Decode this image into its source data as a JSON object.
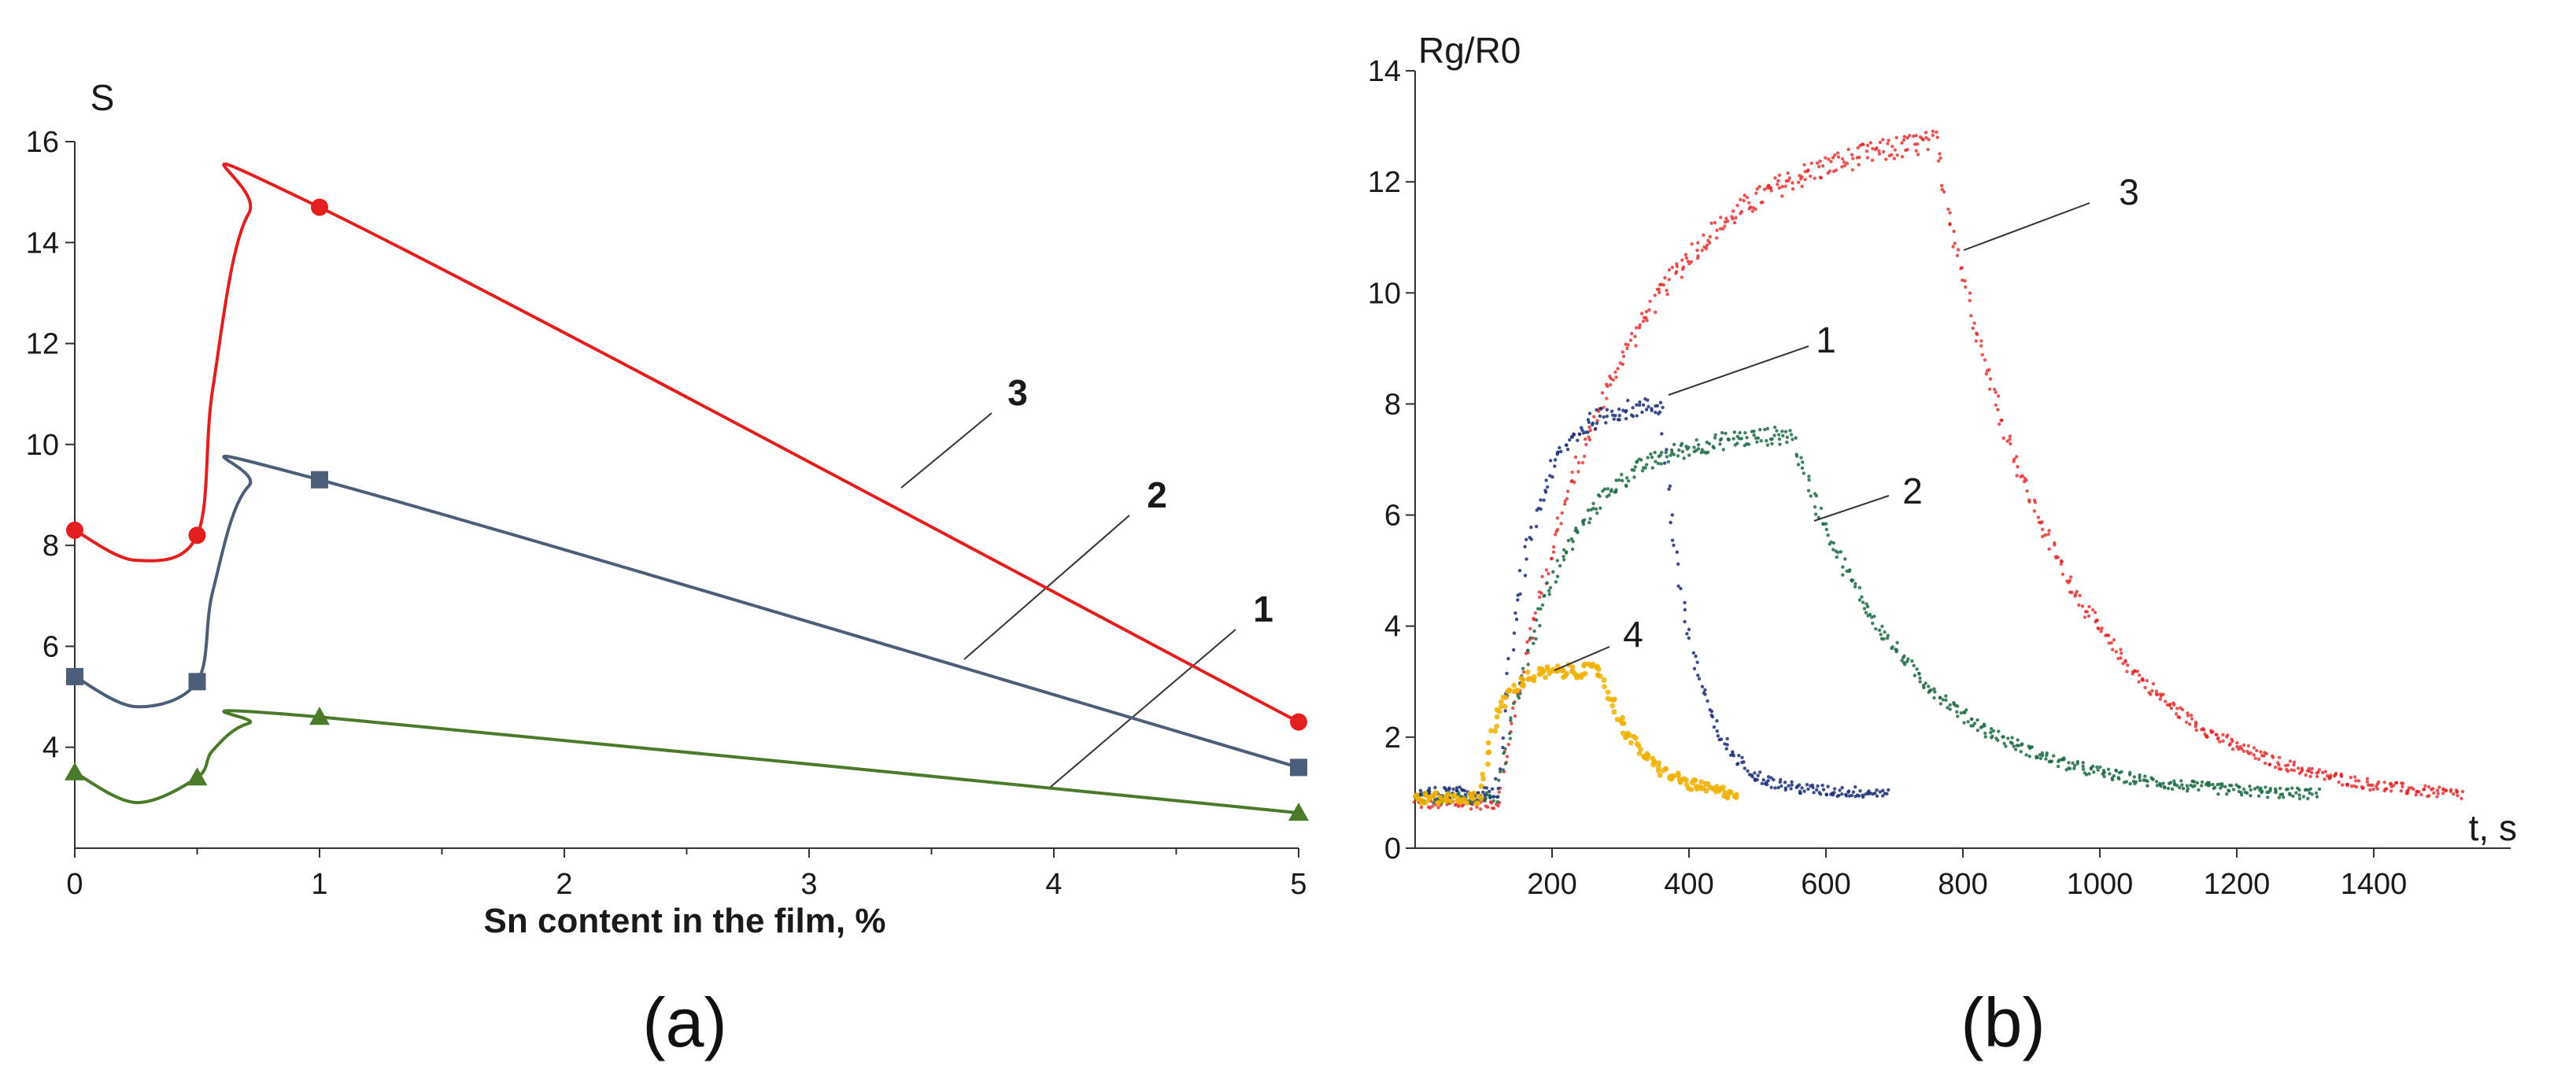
{
  "chart_data": [
    {
      "type": "line",
      "panel_label": "(a)",
      "ylabel": "S",
      "xlabel": "Sn content in the film, %",
      "xlim": [
        0,
        5
      ],
      "ylim": [
        2,
        16
      ],
      "xticks": [
        "0",
        "1",
        "2",
        "3",
        "4",
        "5"
      ],
      "yticks": [
        "4",
        "6",
        "8",
        "10",
        "12",
        "14",
        "16"
      ],
      "series": [
        {
          "name": "1",
          "color": "#4a7a2a",
          "marker": "triangle",
          "x": [
            0,
            0.5,
            1,
            5
          ],
          "y": [
            3.5,
            3.4,
            4.6,
            2.7
          ]
        },
        {
          "name": "2",
          "color": "#4d5e78",
          "marker": "square",
          "x": [
            0,
            0.5,
            1,
            5
          ],
          "y": [
            5.4,
            5.3,
            9.3,
            3.6
          ]
        },
        {
          "name": "3",
          "color": "#e21e1e",
          "marker": "circle",
          "x": [
            0,
            0.5,
            1,
            5
          ],
          "y": [
            8.3,
            8.2,
            14.7,
            4.5
          ]
        }
      ]
    },
    {
      "type": "scatter",
      "panel_label": "(b)",
      "ylabel": "Rg/R0",
      "xlabel": "t, s",
      "xlim": [
        0,
        1600
      ],
      "ylim": [
        0,
        14
      ],
      "xticks": [
        "200",
        "400",
        "600",
        "800",
        "1000",
        "1200",
        "1400"
      ],
      "yticks": [
        "0",
        "2",
        "4",
        "6",
        "8",
        "10",
        "12",
        "14"
      ],
      "series": [
        {
          "name": "1",
          "color": "#1c2f78",
          "t_on": 120,
          "t_off": 360,
          "t_end": 690,
          "baseline": 1.0,
          "max": 8.0,
          "tau_rise": 45,
          "tau_fall": 45
        },
        {
          "name": "2",
          "color": "#1e6b45",
          "t_on": 120,
          "t_off": 550,
          "t_end": 1320,
          "baseline": 0.9,
          "max": 7.5,
          "tau_rise": 90,
          "tau_fall": 170
        },
        {
          "name": "3",
          "color": "#e21e1e",
          "t_on": 120,
          "t_off": 760,
          "t_end": 1530,
          "baseline": 0.8,
          "max": 13.0,
          "tau_rise": 170,
          "tau_fall": 180
        },
        {
          "name": "4",
          "color": "#f0b000",
          "t_on": 95,
          "t_off": 270,
          "t_end": 470,
          "baseline": 0.9,
          "max": 3.2,
          "tau_rise": 25,
          "tau_fall": 60
        }
      ]
    }
  ]
}
